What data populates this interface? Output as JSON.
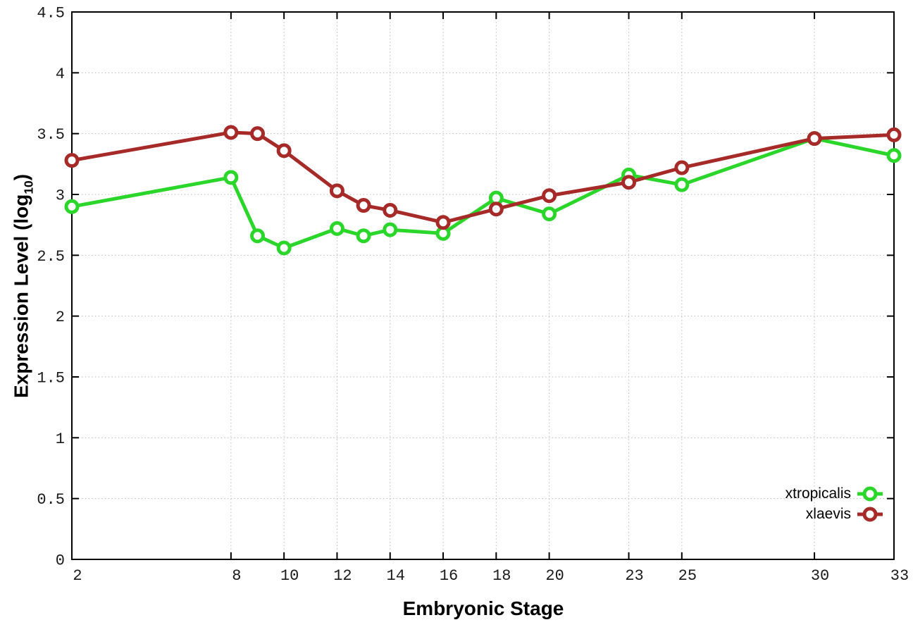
{
  "figure": {
    "background": "#ffffff",
    "axis_color": "#000000",
    "grid_color": "#b9b9b9"
  },
  "chart_data": {
    "type": "line",
    "title": "",
    "xlabel": "Embryonic Stage",
    "ylabel": {
      "prefix": "Expression Level (log",
      "subscript": "10",
      "suffix": ")",
      "full": "Expression Level (log10)"
    },
    "xlim": [
      2,
      33
    ],
    "ylim": [
      0,
      4.5
    ],
    "grid": true,
    "legend_position": "bottom-right",
    "marker": "open-circle",
    "x_ticks": [
      2,
      8,
      10,
      12,
      14,
      16,
      18,
      20,
      23,
      25,
      30,
      33
    ],
    "x_tick_labels": [
      "2",
      "8",
      "10",
      "12",
      "14",
      "16",
      "18",
      "20",
      "23",
      "25",
      "30",
      "33"
    ],
    "y_ticks": [
      0,
      0.5,
      1,
      1.5,
      2,
      2.5,
      3,
      3.5,
      4,
      4.5
    ],
    "y_tick_labels": [
      "0",
      "0.5",
      "1",
      "1.5",
      "2",
      "2.5",
      "3",
      "3.5",
      "4",
      "4.5"
    ],
    "x": [
      2,
      8,
      9,
      10,
      12,
      13,
      14,
      16,
      18,
      20,
      23,
      25,
      30,
      33
    ],
    "series": [
      {
        "name": "xtropicalis",
        "color": "#2bd62b",
        "values": [
          2.9,
          3.14,
          2.66,
          2.56,
          2.72,
          2.66,
          2.71,
          2.68,
          2.97,
          2.84,
          3.16,
          3.08,
          3.46,
          3.32
        ]
      },
      {
        "name": "xlaevis",
        "color": "#a52a28",
        "values": [
          3.28,
          3.51,
          3.5,
          3.36,
          3.03,
          2.91,
          2.87,
          2.77,
          2.88,
          2.99,
          3.1,
          3.22,
          3.46,
          3.49
        ]
      }
    ]
  }
}
